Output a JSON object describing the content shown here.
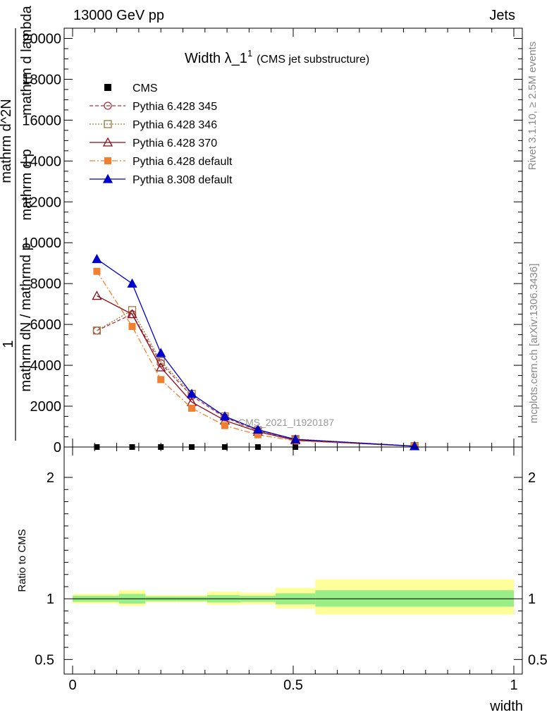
{
  "header": {
    "left": "13000 GeV pp",
    "right": "Jets"
  },
  "side_labels": {
    "rivet": "Rivet 3.1.10, ≥ 2.5M events",
    "mcplots": "mcplots.cern.ch [arXiv:1306.3436]"
  },
  "watermark": "CMS_2021_I1920187",
  "chart_data": {
    "type": "line",
    "title_main": "Width λ_1",
    "title_sup": "1",
    "title_paren": "(CMS jet substructure)",
    "xlabel": "width",
    "ylabel_upper_parts": [
      "1",
      "mathrm dN / mathrmd p",
      "mathrm d^2N",
      "mathrm d p",
      "mathrm d lambda"
    ],
    "ylabel_lower": "Ratio to CMS",
    "xlim": [
      0,
      1
    ],
    "ylim": [
      0,
      20500
    ],
    "ratio_ylim": [
      0.38,
      2.25
    ],
    "x_ticks": [
      {
        "v": 0,
        "label": "0"
      },
      {
        "v": 0.5,
        "label": "0.5"
      },
      {
        "v": 1,
        "label": "1"
      }
    ],
    "y_ticks": [
      {
        "v": 0,
        "label": "0"
      },
      {
        "v": 2000,
        "label": "2000"
      },
      {
        "v": 4000,
        "label": "4000"
      },
      {
        "v": 6000,
        "label": "6000"
      },
      {
        "v": 8000,
        "label": "8000"
      },
      {
        "v": 10000,
        "label": "10000"
      },
      {
        "v": 12000,
        "label": "12000"
      },
      {
        "v": 14000,
        "label": "14000"
      },
      {
        "v": 16000,
        "label": "16000"
      },
      {
        "v": 18000,
        "label": "18000"
      },
      {
        "v": 20000,
        "label": "20000"
      }
    ],
    "ratio_ticks": [
      {
        "v": 0.5,
        "label": "0.5"
      },
      {
        "v": 1,
        "label": "1"
      },
      {
        "v": 2,
        "label": "2"
      }
    ],
    "bins": [
      [
        0.0,
        0.105
      ],
      [
        0.105,
        0.165
      ],
      [
        0.165,
        0.235
      ],
      [
        0.235,
        0.305
      ],
      [
        0.305,
        0.38
      ],
      [
        0.38,
        0.46
      ],
      [
        0.46,
        0.55
      ],
      [
        0.55,
        1.0
      ]
    ],
    "x": [
      0.055,
      0.135,
      0.2,
      0.27,
      0.345,
      0.42,
      0.505,
      0.775
    ],
    "ratio_band_green": [
      [
        0.975,
        1.025
      ],
      [
        0.96,
        1.04
      ],
      [
        0.98,
        1.02
      ],
      [
        0.98,
        1.02
      ],
      [
        0.97,
        1.03
      ],
      [
        0.975,
        1.025
      ],
      [
        0.955,
        1.045
      ],
      [
        0.935,
        1.07
      ]
    ],
    "ratio_band_yellow": [
      [
        0.96,
        1.04
      ],
      [
        0.94,
        1.07
      ],
      [
        0.97,
        1.03
      ],
      [
        0.97,
        1.03
      ],
      [
        0.95,
        1.06
      ],
      [
        0.955,
        1.05
      ],
      [
        0.92,
        1.09
      ],
      [
        0.87,
        1.16
      ]
    ],
    "series": [
      {
        "name": "CMS",
        "color": "#000000",
        "marker": "square-filled",
        "line": "none",
        "y": [
          0,
          0,
          0,
          0,
          0,
          0,
          0,
          0
        ]
      },
      {
        "name": "Pythia 6.428 345",
        "color": "#b03040",
        "marker": "circle-open",
        "line": "dashed",
        "y": [
          5700,
          6500,
          4100,
          2500,
          1450,
          800,
          380,
          45
        ]
      },
      {
        "name": "Pythia 6.428 346",
        "color": "#9a7a3a",
        "marker": "square-open",
        "line": "dotted",
        "y": [
          5700,
          6700,
          4200,
          2600,
          1500,
          820,
          390,
          45
        ]
      },
      {
        "name": "Pythia 6.428 370",
        "color": "#8b0a1a",
        "marker": "triangle-open",
        "line": "solid",
        "y": [
          7400,
          6500,
          3900,
          2200,
          1300,
          750,
          330,
          40
        ]
      },
      {
        "name": "Pythia 6.428 default",
        "color": "#f08030",
        "marker": "square-filled",
        "line": "dashdot",
        "y": [
          8600,
          5900,
          3300,
          1900,
          1050,
          600,
          300,
          40
        ]
      },
      {
        "name": "Pythia 8.308 default",
        "color": "#0000cc",
        "marker": "triangle-filled",
        "line": "solid",
        "y": [
          9200,
          8000,
          4600,
          2600,
          1500,
          850,
          370,
          40
        ]
      }
    ]
  }
}
